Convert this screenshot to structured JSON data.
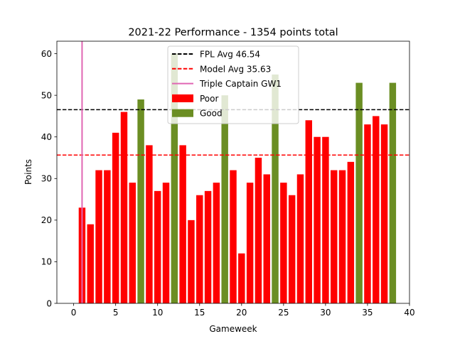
{
  "chart_data": {
    "type": "bar",
    "title": "2021-22 Performance - 1354 points total",
    "xlabel": "Gameweek",
    "ylabel": "Points",
    "xlim": [
      -2.0,
      40.0
    ],
    "ylim": [
      0,
      63
    ],
    "x_ticks": [
      0,
      5,
      10,
      15,
      20,
      25,
      30,
      35,
      40
    ],
    "y_ticks": [
      0,
      10,
      20,
      30,
      40,
      50,
      60
    ],
    "grid": false,
    "legend_position": "top-center",
    "x": [
      1,
      2,
      3,
      4,
      5,
      6,
      7,
      8,
      9,
      10,
      11,
      12,
      13,
      14,
      15,
      16,
      17,
      18,
      19,
      20,
      21,
      22,
      23,
      24,
      25,
      26,
      27,
      28,
      29,
      30,
      31,
      32,
      33,
      34,
      35,
      36,
      37,
      38
    ],
    "values": [
      23,
      19,
      32,
      32,
      41,
      46,
      29,
      49,
      38,
      27,
      29,
      60,
      38,
      20,
      26,
      27,
      29,
      50,
      32,
      12,
      29,
      35,
      31,
      55,
      29,
      26,
      31,
      44,
      40,
      40,
      32,
      32,
      34,
      53,
      43,
      45,
      43,
      53
    ],
    "categories_by_bar": [
      "Poor",
      "Poor",
      "Poor",
      "Poor",
      "Poor",
      "Poor",
      "Poor",
      "Good",
      "Poor",
      "Poor",
      "Poor",
      "Good",
      "Poor",
      "Poor",
      "Poor",
      "Poor",
      "Poor",
      "Good",
      "Poor",
      "Poor",
      "Poor",
      "Poor",
      "Poor",
      "Good",
      "Poor",
      "Poor",
      "Poor",
      "Poor",
      "Poor",
      "Poor",
      "Poor",
      "Poor",
      "Poor",
      "Good",
      "Poor",
      "Poor",
      "Poor",
      "Good"
    ],
    "series": [
      {
        "name": "Poor",
        "color": "#ff0000"
      },
      {
        "name": "Good",
        "color": "#6b8e23"
      }
    ],
    "reference_lines": [
      {
        "name": "FPL Avg 46.54",
        "orientation": "horizontal",
        "value": 46.54,
        "color": "#000000",
        "style": "dashed"
      },
      {
        "name": "Model Avg 35.63",
        "orientation": "horizontal",
        "value": 35.63,
        "color": "#ff0000",
        "style": "dashed"
      },
      {
        "name": "Triple Captain GW1",
        "orientation": "vertical",
        "value": 1,
        "color": "#e066b3",
        "style": "solid"
      }
    ]
  }
}
